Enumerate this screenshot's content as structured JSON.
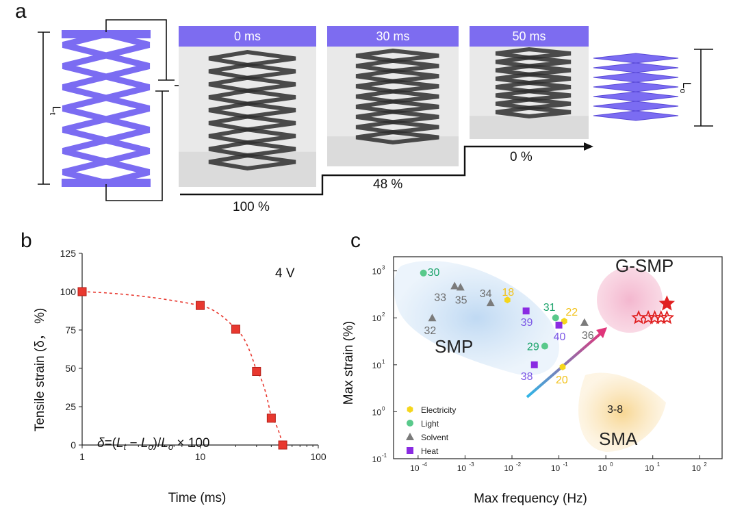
{
  "panel_a": {
    "label": "a",
    "frames": [
      {
        "time": "0 ms",
        "strain": "100 %"
      },
      {
        "time": "30 ms",
        "strain": "48 %"
      },
      {
        "time": "50 ms",
        "strain": "0 %"
      }
    ],
    "left_length_label": "Lt",
    "right_length_label": "Lo",
    "color_lattice": "#7b6cf2"
  },
  "panel_b": {
    "label": "b",
    "voltage_label": "4 V",
    "equation": "δ=(Lt − Lo)/Lo × 100",
    "chart_data": {
      "type": "scatter",
      "xlabel": "Time (ms)",
      "ylabel": "Tensile strain (δ， %)",
      "xscale": "log",
      "xlim": [
        1,
        100
      ],
      "ylim": [
        0,
        125
      ],
      "xticks": [
        "1",
        "10",
        "100"
      ],
      "yticks": [
        "0",
        "25",
        "50",
        "75",
        "100",
        "125"
      ],
      "x": [
        1,
        10,
        20,
        30,
        40,
        50
      ],
      "y": [
        100,
        91,
        75.5,
        48,
        17.5,
        0
      ],
      "fit_line": "dashed",
      "marker_color": "#e8382f"
    }
  },
  "panel_c": {
    "label": "c",
    "regions": [
      {
        "name": "SMP",
        "color": "#bcd7f2"
      },
      {
        "name": "G-SMP",
        "color": "#f3b3cc"
      },
      {
        "name": "SMA",
        "color": "#f7d48c"
      }
    ],
    "sma_ref": "3-8",
    "chart_data": {
      "type": "scatter",
      "xlabel": "Max frequency (Hz)",
      "ylabel": "Max strain (%)",
      "xscale": "log",
      "yscale": "log",
      "xlim": [
        3e-05,
        300
      ],
      "ylim": [
        0.1,
        2000
      ],
      "xtick_exponents": [
        -4,
        -3,
        -2,
        -1,
        0,
        1,
        2
      ],
      "ytick_exponents": [
        -1,
        0,
        1,
        2,
        3
      ],
      "legend": [
        {
          "name": "Electricity",
          "color": "#f5d61c",
          "marker": "hexagon"
        },
        {
          "name": "Light",
          "color": "#59c98b",
          "marker": "circle"
        },
        {
          "name": "Solvent",
          "color": "#7b7b7b",
          "marker": "triangle"
        },
        {
          "name": "Heat",
          "color": "#8a2be2",
          "marker": "square"
        }
      ],
      "points": [
        {
          "ref": "30",
          "type": "Light",
          "x": 0.00013,
          "y": 900
        },
        {
          "ref": "33",
          "type": "Solvent",
          "x": 0.0006,
          "y": 480
        },
        {
          "ref": "35",
          "type": "Solvent",
          "x": 0.0008,
          "y": 450
        },
        {
          "ref": "34",
          "type": "Solvent",
          "x": 0.0035,
          "y": 210
        },
        {
          "ref": "18",
          "type": "Electricity",
          "x": 0.008,
          "y": 240
        },
        {
          "ref": "32",
          "type": "Solvent",
          "x": 0.0002,
          "y": 100
        },
        {
          "ref": "39",
          "type": "Heat",
          "x": 0.02,
          "y": 140
        },
        {
          "ref": "31",
          "type": "Light",
          "x": 0.085,
          "y": 100
        },
        {
          "ref": "22",
          "type": "Electricity",
          "x": 0.13,
          "y": 85
        },
        {
          "ref": "40",
          "type": "Heat",
          "x": 0.1,
          "y": 70
        },
        {
          "ref": "36",
          "type": "Solvent",
          "x": 0.35,
          "y": 80
        },
        {
          "ref": "29",
          "type": "Light",
          "x": 0.05,
          "y": 25
        },
        {
          "ref": "38",
          "type": "Heat",
          "x": 0.03,
          "y": 10
        },
        {
          "ref": "20",
          "type": "Electricity",
          "x": 0.12,
          "y": 9
        }
      ],
      "this_work": {
        "open_star_x": [
          5,
          8,
          11,
          15,
          20
        ],
        "open_star_y": 100,
        "filled_star": {
          "x": 20,
          "y": 200
        },
        "color": "#e02020"
      }
    }
  }
}
